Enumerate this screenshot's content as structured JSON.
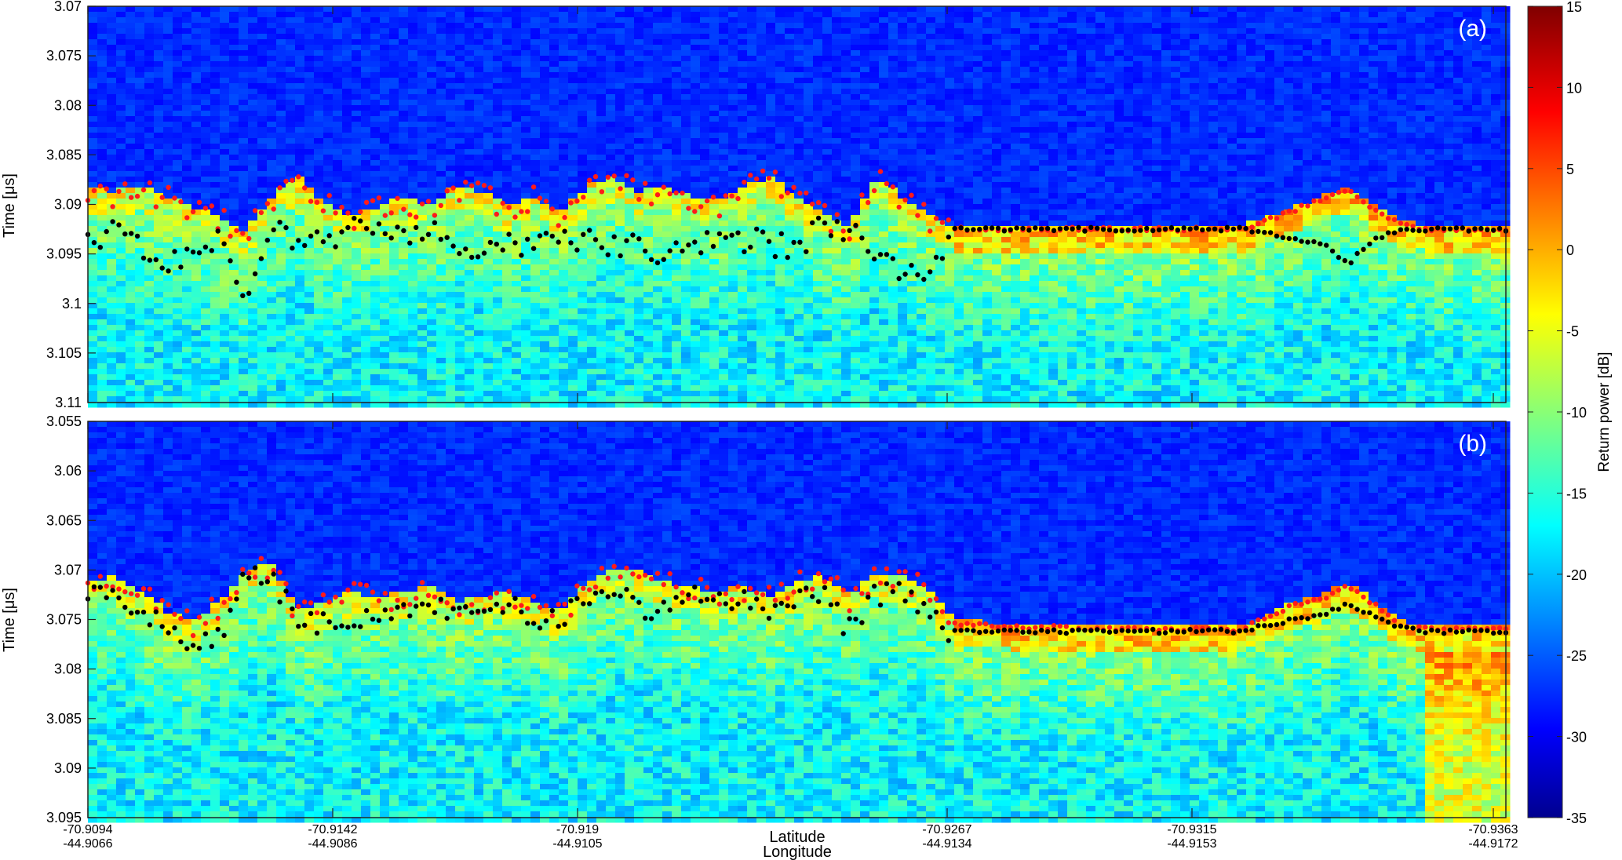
{
  "chart_data": {
    "type": "heatmap",
    "colorbar": {
      "label": "Return power [dB]",
      "range": [
        -35,
        15
      ],
      "ticks": [
        "15",
        "10",
        "5",
        "0",
        "-5",
        "-10",
        "-15",
        "-20",
        "-25",
        "-30",
        "-35"
      ],
      "colormap": "jet"
    },
    "x_axis": {
      "label_line1": "Latitude",
      "label_line2": "Longitude",
      "ticks": [
        {
          "lat": "-70.9094",
          "lon": "-44.9066"
        },
        {
          "lat": "-70.9142",
          "lon": "-44.9086"
        },
        {
          "lat": "-70.919",
          "lon": "-44.9105"
        },
        {
          "lat": "-70.9267",
          "lon": "-44.9134"
        },
        {
          "lat": "-70.9315",
          "lon": "-44.9153"
        },
        {
          "lat": "-70.9363",
          "lon": "-44.9172"
        }
      ]
    },
    "panels": [
      {
        "tag": "(a)",
        "ylabel": "Time [μs]",
        "ylim": [
          3.07,
          3.11
        ],
        "yticks": [
          "3.07",
          "3.075",
          "3.08",
          "3.085",
          "3.09",
          "3.095",
          "3.1",
          "3.105",
          "3.11"
        ],
        "surface_flat_time": 3.0925,
        "red_points_time_profile": [
          3.0885,
          3.089,
          3.0885,
          3.0895,
          3.0905,
          3.0915,
          3.093,
          3.0895,
          3.0875,
          3.09,
          3.0915,
          3.0905,
          3.0895,
          3.0905,
          3.0885,
          3.089,
          3.0905,
          3.0895,
          3.091,
          3.0885,
          3.0875,
          3.089,
          3.0885,
          3.0895,
          3.09,
          3.0885,
          3.0875,
          3.0895,
          3.091,
          3.0925,
          3.0875,
          3.0895,
          3.0915,
          3.0925,
          3.0925,
          3.0925,
          3.0925,
          3.0925,
          3.0925,
          3.0925,
          3.0925,
          3.0925,
          3.0925,
          3.0925,
          3.0925,
          3.0915,
          3.0905,
          3.0895,
          3.0885,
          3.0905,
          3.092,
          3.0925,
          3.0925,
          3.0925,
          3.0925
        ],
        "black_points_time_profile": [
          3.0935,
          3.093,
          3.094,
          3.0955,
          3.095,
          3.0935,
          3.1,
          3.0925,
          3.0935,
          3.094,
          3.0925,
          3.093,
          3.0935,
          3.0925,
          3.094,
          3.0955,
          3.0935,
          3.0945,
          3.093,
          3.0935,
          3.0945,
          3.094,
          3.0955,
          3.0945,
          3.0935,
          3.0935,
          3.094,
          3.0945,
          3.092,
          3.0925,
          3.095,
          3.097,
          3.0975,
          3.0925,
          3.0925,
          3.0925,
          3.0925,
          3.0925,
          3.0925,
          3.0925,
          3.0925,
          3.0925,
          3.0925,
          3.0925,
          3.0925,
          3.093,
          3.0935,
          3.094,
          3.096,
          3.0935,
          3.0925,
          3.0925,
          3.0925,
          3.0925,
          3.0925
        ]
      },
      {
        "tag": "(b)",
        "ylabel": "Time [μs]",
        "ylim": [
          3.055,
          3.095
        ],
        "yticks": [
          "3.055",
          "3.06",
          "3.065",
          "3.07",
          "3.075",
          "3.08",
          "3.085",
          "3.09",
          "3.095"
        ],
        "surface_flat_time": 3.0762,
        "red_points_time_profile": [
          3.0715,
          3.071,
          3.0725,
          3.0745,
          3.0755,
          3.0735,
          3.0705,
          3.0695,
          3.0745,
          3.0735,
          3.0725,
          3.073,
          3.0725,
          3.072,
          3.0735,
          3.073,
          3.0725,
          3.0735,
          3.0745,
          3.0715,
          3.07,
          3.0705,
          3.0715,
          3.072,
          3.0725,
          3.072,
          3.073,
          3.0715,
          3.071,
          3.073,
          3.0705,
          3.071,
          3.072,
          3.0755,
          3.0755,
          3.0758,
          3.0758,
          3.0758,
          3.076,
          3.076,
          3.076,
          3.076,
          3.076,
          3.076,
          3.076,
          3.0745,
          3.0735,
          3.073,
          3.0715,
          3.0735,
          3.0755,
          3.076,
          3.076,
          3.076,
          3.076
        ],
        "black_points_time_profile": [
          3.073,
          3.0725,
          3.074,
          3.0765,
          3.0775,
          3.0765,
          3.071,
          3.0705,
          3.0755,
          3.0755,
          3.0745,
          3.0755,
          3.074,
          3.0735,
          3.0745,
          3.0745,
          3.074,
          3.0745,
          3.0755,
          3.0725,
          3.072,
          3.0735,
          3.074,
          3.0725,
          3.0735,
          3.073,
          3.0745,
          3.0725,
          3.072,
          3.0762,
          3.0725,
          3.0725,
          3.0745,
          3.0762,
          3.0762,
          3.0762,
          3.0762,
          3.0762,
          3.0762,
          3.0762,
          3.0762,
          3.0762,
          3.0762,
          3.0762,
          3.0762,
          3.0755,
          3.075,
          3.0745,
          3.0735,
          3.0745,
          3.0758,
          3.0762,
          3.0762,
          3.0762,
          3.0762
        ]
      }
    ]
  }
}
